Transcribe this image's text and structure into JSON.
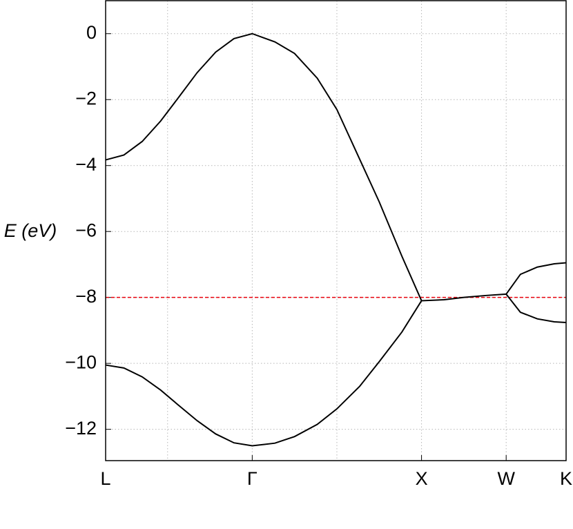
{
  "chart_data": {
    "type": "line",
    "ylabel": "E (eV)",
    "xlim": [
      0,
      2.72
    ],
    "ylim": [
      -12.95,
      1.0
    ],
    "xticks": [
      {
        "value": 0,
        "label": "L"
      },
      {
        "value": 0.866,
        "label": "Γ"
      },
      {
        "value": 1.866,
        "label": "X"
      },
      {
        "value": 2.366,
        "label": "W"
      },
      {
        "value": 2.72,
        "label": "K"
      }
    ],
    "xgrid": [
      0.366,
      0.866,
      1.366,
      1.866,
      2.366
    ],
    "yticks": [
      0,
      {
        "value": -2,
        "label": "−2"
      },
      {
        "value": -4,
        "label": "−4"
      },
      {
        "value": -6,
        "label": "−6"
      },
      {
        "value": -8,
        "label": "−8"
      },
      {
        "value": -10,
        "label": "−10"
      },
      {
        "value": -12,
        "label": "−12"
      }
    ],
    "grid": true,
    "hline": {
      "value": -8,
      "color": "#e8000b"
    },
    "series": [
      {
        "color": "#000000",
        "x": [
          0,
          0.108,
          0.216,
          0.325,
          0.433,
          0.541,
          0.65,
          0.758,
          0.866,
          1.0,
          1.116,
          1.25,
          1.366,
          1.5,
          1.616,
          1.75,
          1.866,
          2.0,
          2.116,
          2.25,
          2.366,
          2.45,
          2.55,
          2.65,
          2.72
        ],
        "values": [
          -3.83,
          -3.68,
          -3.27,
          -2.65,
          -1.92,
          -1.18,
          -0.56,
          -0.15,
          0,
          -0.25,
          -0.6,
          -1.35,
          -2.3,
          -3.8,
          -5.1,
          -6.75,
          -8.1,
          -8.07,
          -8.0,
          -7.94,
          -7.9,
          -7.3,
          -7.08,
          -6.98,
          -6.95
        ]
      },
      {
        "color": "#000000",
        "x": [
          0,
          0.108,
          0.216,
          0.325,
          0.433,
          0.541,
          0.65,
          0.758,
          0.866,
          1.0,
          1.116,
          1.25,
          1.366,
          1.5,
          1.616,
          1.75,
          1.866
        ],
        "values": [
          -10.05,
          -10.14,
          -10.41,
          -10.81,
          -11.28,
          -11.74,
          -12.14,
          -12.41,
          -12.5,
          -12.42,
          -12.22,
          -11.85,
          -11.38,
          -10.7,
          -9.95,
          -9.05,
          -8.1
        ]
      },
      {
        "color": "#000000",
        "x": [
          2.366,
          2.45,
          2.55,
          2.65,
          2.72
        ],
        "values": [
          -7.9,
          -8.45,
          -8.65,
          -8.74,
          -8.76
        ]
      }
    ]
  }
}
